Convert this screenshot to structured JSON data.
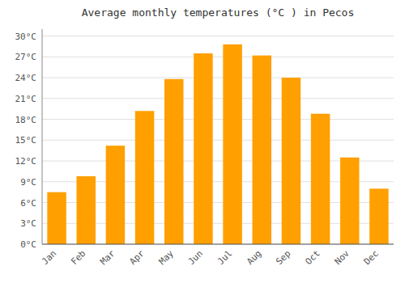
{
  "chart_data": {
    "type": "bar",
    "title": "Average monthly temperatures (°C ) in Pecos",
    "categories": [
      "Jan",
      "Feb",
      "Mar",
      "Apr",
      "May",
      "Jun",
      "Jul",
      "Aug",
      "Sep",
      "Oct",
      "Nov",
      "Dec"
    ],
    "values": [
      7.5,
      9.8,
      14.2,
      19.2,
      23.8,
      27.5,
      28.8,
      27.2,
      24.0,
      18.8,
      12.5,
      8.0
    ],
    "color": "#FFA000",
    "ylim": [
      0,
      31
    ],
    "yticks": [
      {
        "value": 0,
        "label": "0°C"
      },
      {
        "value": 3,
        "label": "3°C"
      },
      {
        "value": 6,
        "label": "6°C"
      },
      {
        "value": 9,
        "label": "9°C"
      },
      {
        "value": 12,
        "label": "12°C"
      },
      {
        "value": 15,
        "label": "15°C"
      },
      {
        "value": 18,
        "label": "18°C"
      },
      {
        "value": 21,
        "label": "21°C"
      },
      {
        "value": 24,
        "label": "24°C"
      },
      {
        "value": 27,
        "label": "27°C"
      },
      {
        "value": 30,
        "label": "30°C"
      }
    ],
    "grid": true
  }
}
